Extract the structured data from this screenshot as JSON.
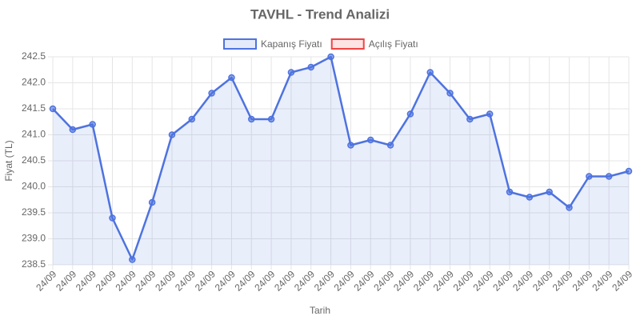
{
  "chart_data": {
    "type": "line",
    "title": "TAVHL - Trend Analizi",
    "xlabel": "Tarih",
    "ylabel": "Fiyat (TL)",
    "categories": [
      "24/09",
      "24/09",
      "24/09",
      "24/09",
      "24/09",
      "24/09",
      "24/09",
      "24/09",
      "24/09",
      "24/09",
      "24/09",
      "24/09",
      "24/09",
      "24/09",
      "24/09",
      "24/09",
      "24/09",
      "24/09",
      "24/09",
      "24/09",
      "24/09",
      "24/09",
      "24/09",
      "24/09",
      "24/09",
      "24/09",
      "24/09",
      "24/09",
      "24/09",
      "24/09"
    ],
    "series": [
      {
        "name": "Kapanış Fiyatı",
        "color": "#4e73df",
        "fill": true,
        "values": [
          241.5,
          241.1,
          241.2,
          239.4,
          238.6,
          239.7,
          241.0,
          241.3,
          241.8,
          242.1,
          241.3,
          241.3,
          242.2,
          242.3,
          242.5,
          240.8,
          240.9,
          240.8,
          241.4,
          242.2,
          241.8,
          241.3,
          241.4,
          239.9,
          239.8,
          239.9,
          239.6,
          240.2,
          240.2,
          240.3
        ]
      },
      {
        "name": "Açılış Fiyatı",
        "color": "#ef4444",
        "fill": false,
        "values": [
          null,
          null,
          null,
          null,
          null,
          null,
          null,
          null,
          null,
          null,
          null,
          null,
          null,
          null,
          null,
          null,
          null,
          null,
          null,
          null,
          null,
          null,
          null,
          null,
          null,
          null,
          null,
          null,
          null,
          null
        ]
      }
    ],
    "ylim": [
      238.5,
      242.5
    ],
    "yticks": [
      238.5,
      {
        "value": 239,
        "label": "239.0"
      },
      239.5,
      {
        "value": 240,
        "label": "240.0"
      },
      240.5,
      {
        "value": 241,
        "label": "241.0"
      },
      241.5,
      {
        "value": 242,
        "label": "242.0"
      },
      242.5
    ],
    "grid": true,
    "legend": "top"
  }
}
